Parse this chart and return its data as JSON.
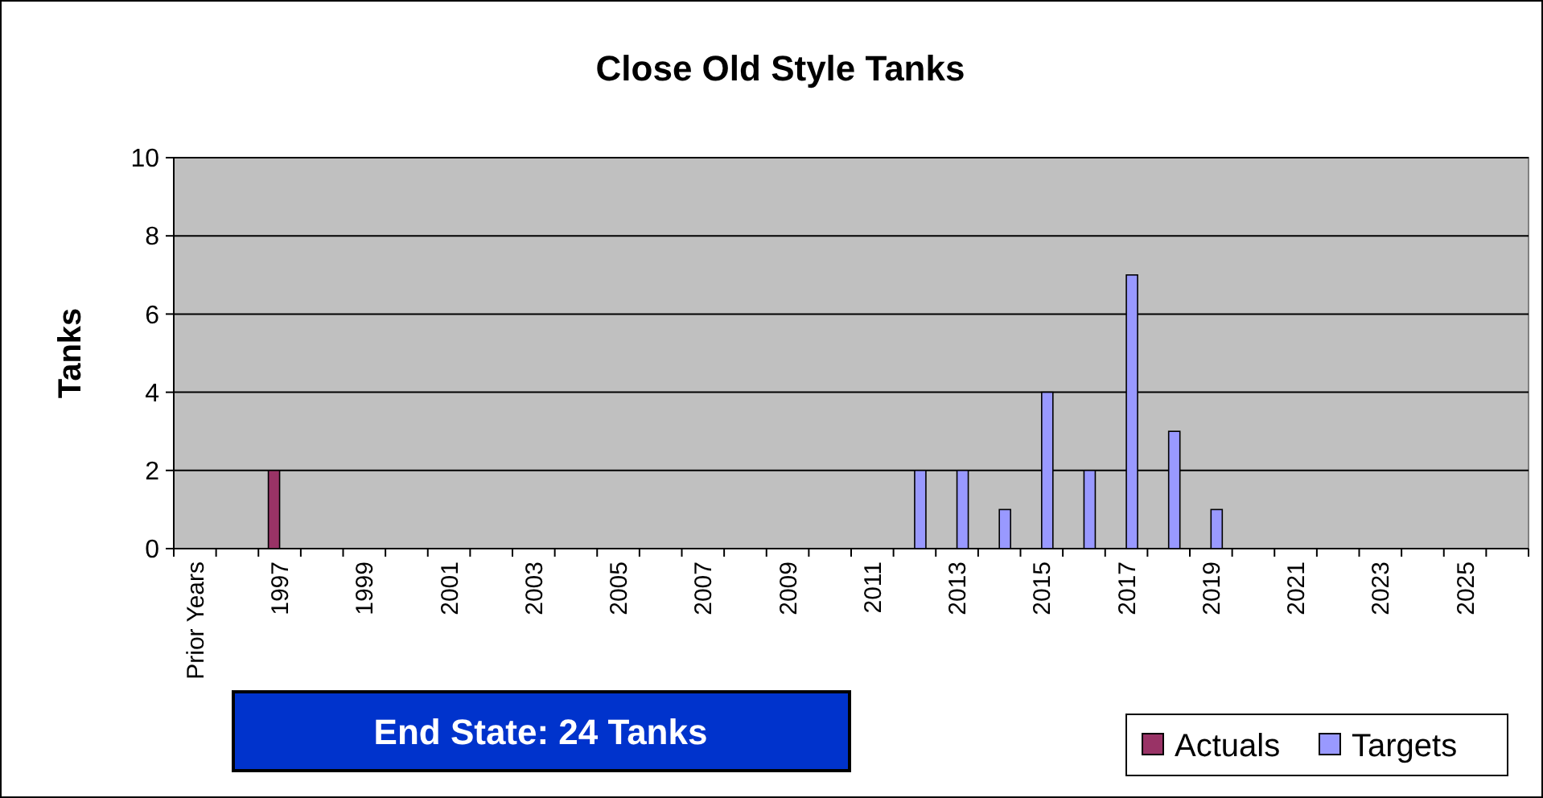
{
  "chart_data": {
    "type": "bar",
    "title": "Close Old Style Tanks",
    "ylabel": "Tanks",
    "categories": [
      "Prior Years",
      null,
      "1997",
      null,
      "1999",
      null,
      "2001",
      null,
      "2003",
      null,
      "2005",
      null,
      "2007",
      null,
      "2009",
      null,
      "2011",
      null,
      "2013",
      null,
      "2015",
      null,
      "2017",
      null,
      "2019",
      null,
      "2021",
      null,
      "2023",
      null,
      "2025",
      null
    ],
    "series": [
      {
        "name": "Actuals",
        "color": "#993366",
        "values": [
          null,
          null,
          2,
          null,
          null,
          null,
          null,
          null,
          null,
          null,
          null,
          null,
          null,
          null,
          null,
          null,
          null,
          null,
          null,
          null,
          null,
          null,
          null,
          null,
          null,
          null,
          null,
          null,
          null,
          null,
          null,
          null
        ]
      },
      {
        "name": "Targets",
        "color": "#9999ff",
        "values": [
          null,
          null,
          null,
          null,
          null,
          null,
          null,
          null,
          null,
          null,
          null,
          null,
          null,
          null,
          null,
          null,
          null,
          2,
          2,
          1,
          4,
          2,
          7,
          3,
          1,
          null,
          null,
          null,
          null,
          null,
          null,
          null
        ]
      }
    ],
    "ylim": [
      0,
      10
    ],
    "yticks": [
      0,
      2,
      4,
      6,
      8,
      10
    ],
    "grid": "y",
    "legend": "bottom right",
    "annotations": [
      "End State: 24 Tanks"
    ]
  }
}
